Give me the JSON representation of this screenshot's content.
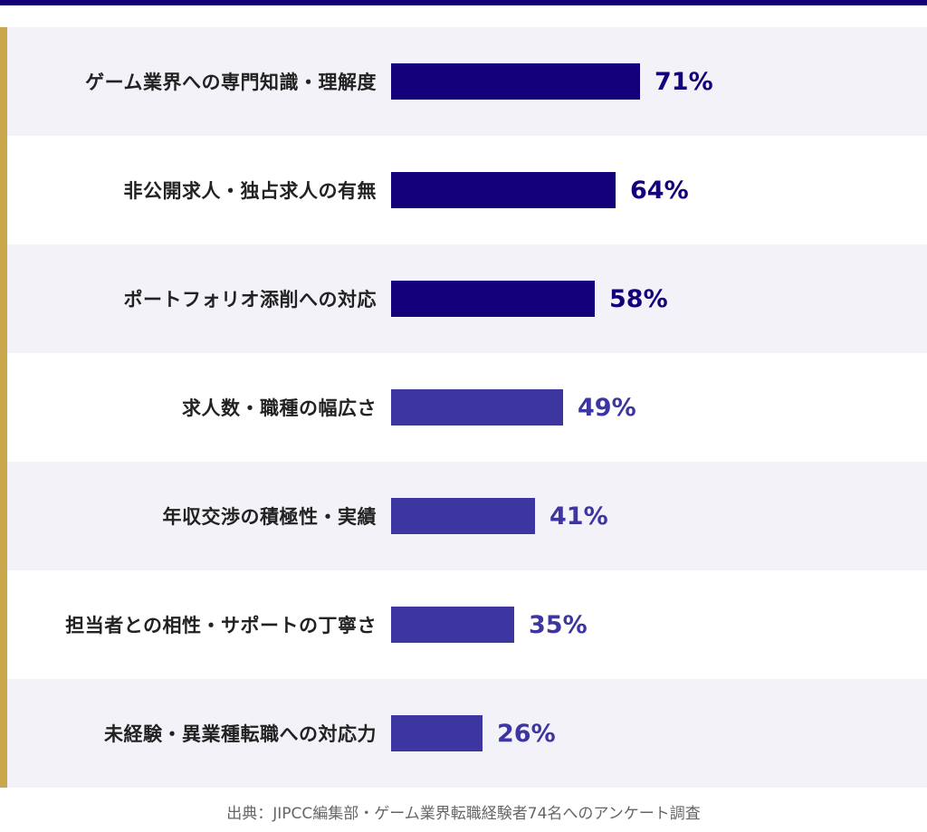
{
  "chart_data": {
    "type": "bar",
    "orientation": "horizontal",
    "categories": [
      "ゲーム業界への専門知識・理解度",
      "非公開求人・独占求人の有無",
      "ポートフォリオ添削への対応",
      "求人数・職種の幅広さ",
      "年収交渉の積極性・実績",
      "担当者との相性・サポートの丁寧さ",
      "未経験・異業種転職への対応力"
    ],
    "values": [
      71,
      64,
      58,
      49,
      41,
      35,
      26
    ],
    "value_labels": [
      "71%",
      "64%",
      "58%",
      "49%",
      "41%",
      "35%",
      "26%"
    ],
    "unit": "%",
    "xlim": [
      0,
      100
    ],
    "grid": false,
    "legend": "none",
    "colors": {
      "top_bars": "#14007a",
      "other_bars": "#3d35a0",
      "accent_line": "#c8a84b",
      "row_alt_background": "#f3f2f8"
    },
    "highlight_top_n": 3
  },
  "source_note": "出典：JIPCC編集部・ゲーム業界転職経験者74名へのアンケート調査"
}
